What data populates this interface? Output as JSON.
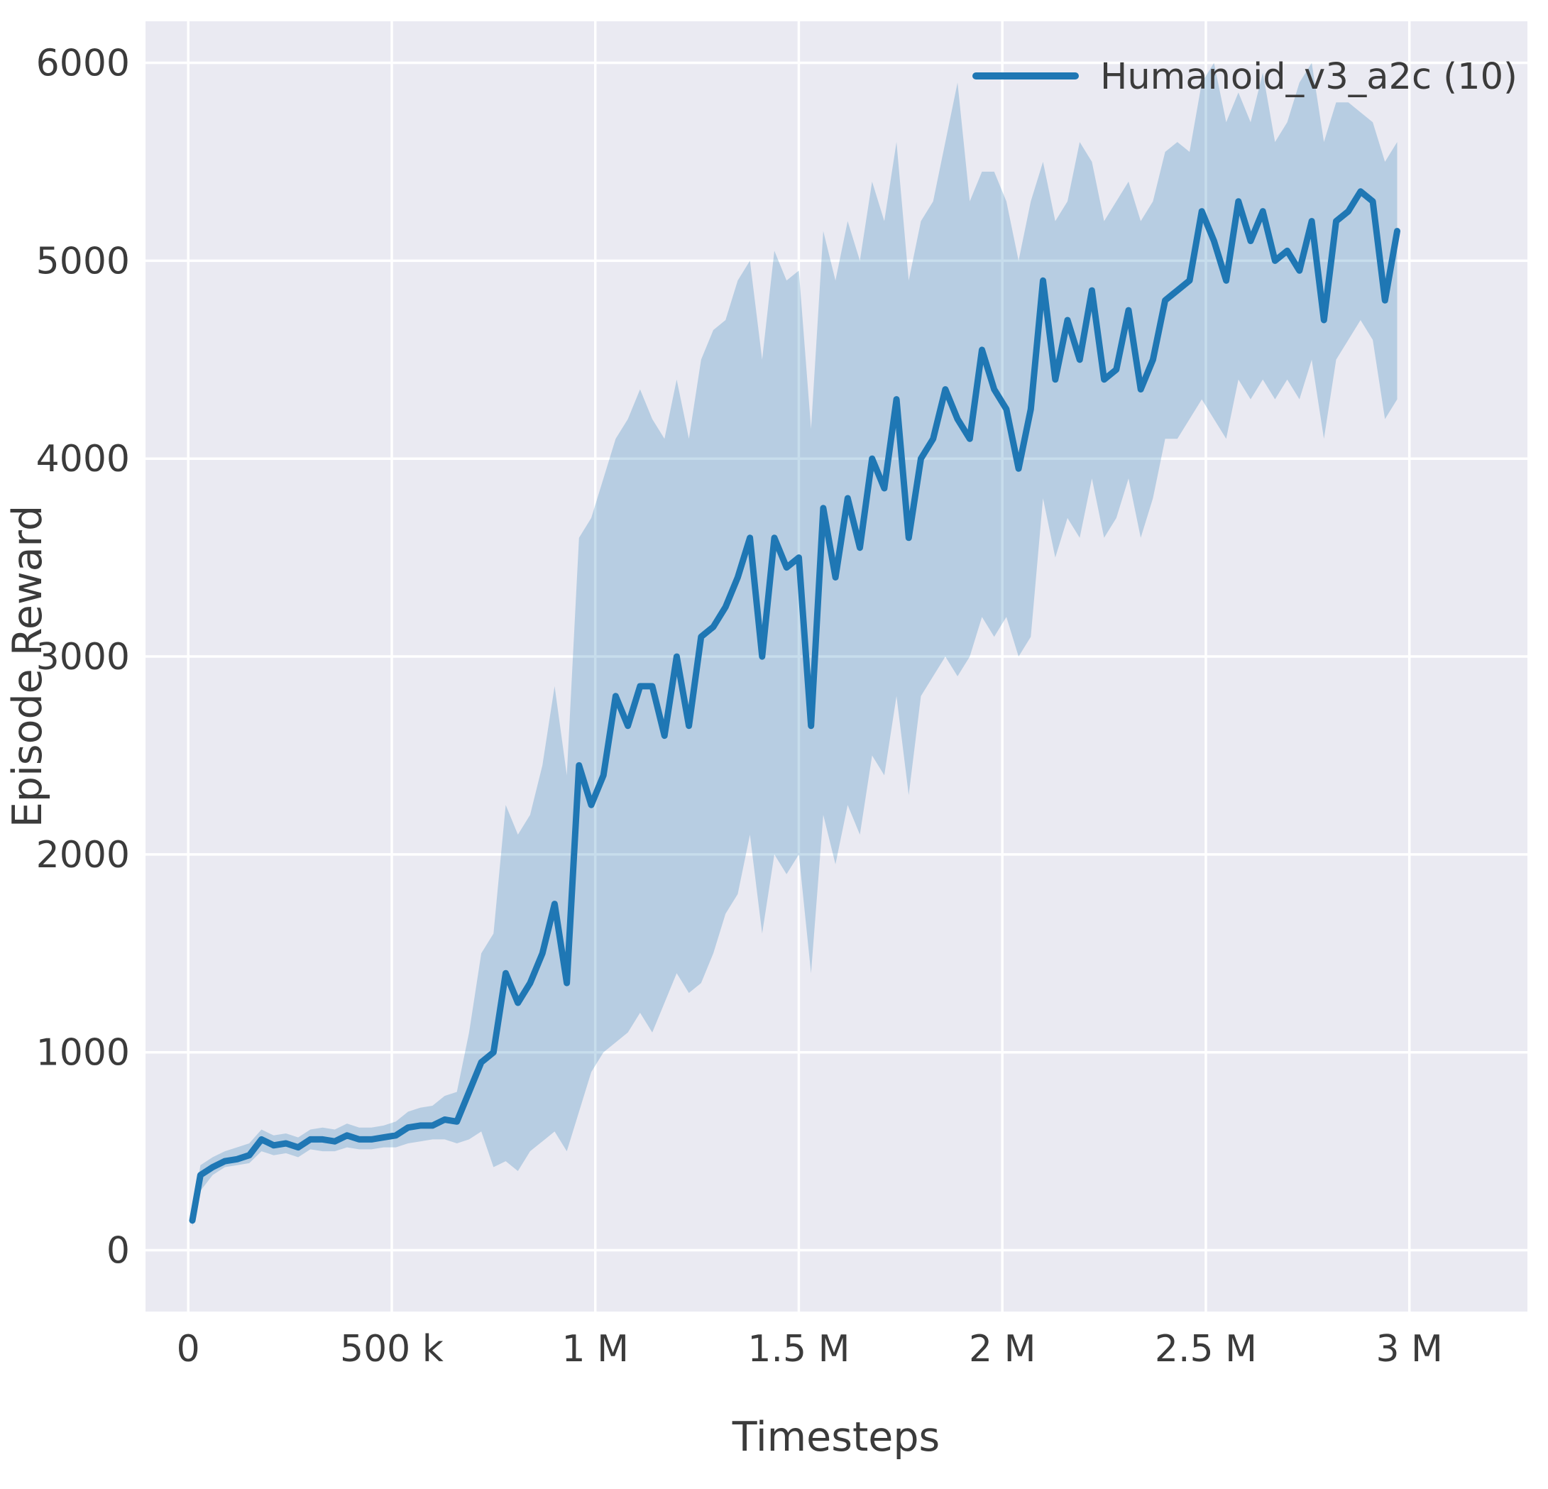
{
  "chart_data": {
    "type": "line",
    "title": "",
    "xlabel": "Timesteps",
    "ylabel": "Episode Reward",
    "xlim": [
      -105000,
      3290000
    ],
    "ylim": [
      -310,
      6210
    ],
    "grid": true,
    "legend_position": "upper right",
    "x_ticks": [
      {
        "value": 0,
        "label": "0"
      },
      {
        "value": 500000,
        "label": "500 k"
      },
      {
        "value": 1000000,
        "label": "1 M"
      },
      {
        "value": 1500000,
        "label": "1.5 M"
      },
      {
        "value": 2000000,
        "label": "2 M"
      },
      {
        "value": 2500000,
        "label": "2.5 M"
      },
      {
        "value": 3000000,
        "label": "3 M"
      }
    ],
    "y_ticks": [
      {
        "value": 0,
        "label": "0"
      },
      {
        "value": 1000,
        "label": "1000"
      },
      {
        "value": 2000,
        "label": "2000"
      },
      {
        "value": 3000,
        "label": "3000"
      },
      {
        "value": 4000,
        "label": "4000"
      },
      {
        "value": 5000,
        "label": "5000"
      },
      {
        "value": 6000,
        "label": "6000"
      }
    ],
    "style": {
      "plot_bg": "#eaeaf2",
      "grid_color": "#ffffff",
      "text_color": "#3b3b3b",
      "line_width": 9,
      "grid_width": 3.5,
      "band_opacity": 0.25
    },
    "series": [
      {
        "name": "Humanoid_v3_a2c (10)",
        "color": "#1f77b4",
        "band_color": "#1f77b4",
        "x": [
          10000,
          30000,
          60000,
          90000,
          120000,
          150000,
          180000,
          210000,
          240000,
          270000,
          300000,
          330000,
          360000,
          390000,
          420000,
          450000,
          480000,
          510000,
          540000,
          570000,
          600000,
          630000,
          660000,
          690000,
          720000,
          750000,
          780000,
          810000,
          840000,
          870000,
          900000,
          930000,
          960000,
          990000,
          1020000,
          1050000,
          1080000,
          1110000,
          1140000,
          1170000,
          1200000,
          1230000,
          1260000,
          1290000,
          1320000,
          1350000,
          1380000,
          1410000,
          1440000,
          1470000,
          1500000,
          1530000,
          1560000,
          1590000,
          1620000,
          1650000,
          1680000,
          1710000,
          1740000,
          1770000,
          1800000,
          1830000,
          1860000,
          1890000,
          1920000,
          1950000,
          1980000,
          2010000,
          2040000,
          2070000,
          2100000,
          2130000,
          2160000,
          2190000,
          2220000,
          2250000,
          2280000,
          2310000,
          2340000,
          2370000,
          2400000,
          2430000,
          2460000,
          2490000,
          2520000,
          2550000,
          2580000,
          2610000,
          2640000,
          2670000,
          2700000,
          2730000,
          2760000,
          2790000,
          2820000,
          2850000,
          2880000,
          2910000,
          2940000,
          2970000
        ],
        "mean": [
          150,
          380,
          420,
          450,
          460,
          480,
          560,
          530,
          540,
          520,
          560,
          560,
          550,
          580,
          560,
          560,
          570,
          580,
          620,
          630,
          630,
          660,
          650,
          800,
          950,
          1000,
          1400,
          1250,
          1350,
          1500,
          1750,
          1350,
          2450,
          2250,
          2400,
          2800,
          2650,
          2850,
          2850,
          2600,
          3000,
          2650,
          3100,
          3150,
          3250,
          3400,
          3600,
          3000,
          3600,
          3450,
          3500,
          2650,
          3750,
          3400,
          3800,
          3550,
          4000,
          3850,
          4300,
          3600,
          4000,
          4100,
          4350,
          4200,
          4100,
          4550,
          4350,
          4250,
          3950,
          4250,
          4900,
          4400,
          4700,
          4500,
          4850,
          4400,
          4450,
          4750,
          4350,
          4500,
          4800,
          4850,
          4900,
          5250,
          5100,
          4900,
          5300,
          5100,
          5250,
          5000,
          5050,
          4950,
          5200,
          4700,
          5200,
          5250,
          5350,
          5300,
          4800,
          5150
        ],
        "low": [
          120,
          300,
          380,
          420,
          430,
          440,
          500,
          480,
          490,
          470,
          510,
          500,
          500,
          520,
          510,
          510,
          520,
          520,
          540,
          550,
          560,
          560,
          540,
          560,
          600,
          420,
          450,
          400,
          500,
          550,
          600,
          500,
          700,
          900,
          1000,
          1050,
          1100,
          1200,
          1100,
          1250,
          1400,
          1300,
          1350,
          1500,
          1700,
          1800,
          2100,
          1600,
          2000,
          1900,
          2000,
          1400,
          2200,
          1950,
          2250,
          2100,
          2500,
          2400,
          2800,
          2300,
          2800,
          2900,
          3000,
          2900,
          3000,
          3200,
          3100,
          3200,
          3000,
          3100,
          3800,
          3500,
          3700,
          3600,
          3900,
          3600,
          3700,
          3900,
          3600,
          3800,
          4100,
          4100,
          4200,
          4300,
          4200,
          4100,
          4400,
          4300,
          4400,
          4300,
          4400,
          4300,
          4500,
          4100,
          4500,
          4600,
          4700,
          4600,
          4200,
          4300
        ],
        "high": [
          180,
          430,
          470,
          500,
          520,
          540,
          610,
          580,
          590,
          570,
          610,
          620,
          610,
          640,
          620,
          620,
          630,
          650,
          700,
          720,
          730,
          780,
          800,
          1100,
          1500,
          1600,
          2250,
          2100,
          2200,
          2450,
          2850,
          2400,
          3600,
          3700,
          3900,
          4100,
          4200,
          4350,
          4200,
          4100,
          4400,
          4100,
          4500,
          4650,
          4700,
          4900,
          5000,
          4500,
          5050,
          4900,
          4950,
          4150,
          5150,
          4900,
          5200,
          5000,
          5400,
          5200,
          5600,
          4900,
          5200,
          5300,
          5600,
          5900,
          5300,
          5450,
          5450,
          5300,
          5000,
          5300,
          5500,
          5200,
          5300,
          5600,
          5500,
          5200,
          5300,
          5400,
          5200,
          5300,
          5550,
          5600,
          5550,
          5900,
          6000,
          5700,
          5850,
          5700,
          5950,
          5600,
          5700,
          5900,
          6000,
          5600,
          5800,
          5800,
          5750,
          5700,
          5500,
          5600
        ]
      }
    ]
  }
}
